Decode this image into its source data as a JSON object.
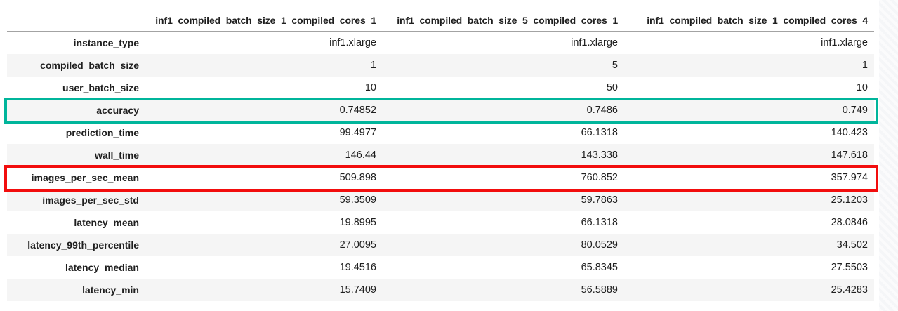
{
  "chart_data": {
    "type": "table",
    "title": "",
    "columns": [
      "inf1_compiled_batch_size_1_compiled_cores_1",
      "inf1_compiled_batch_size_5_compiled_cores_1",
      "inf1_compiled_batch_size_1_compiled_cores_4"
    ],
    "rows": [
      {
        "label": "instance_type",
        "values": [
          "inf1.xlarge",
          "inf1.xlarge",
          "inf1.xlarge"
        ]
      },
      {
        "label": "compiled_batch_size",
        "values": [
          "1",
          "5",
          "1"
        ]
      },
      {
        "label": "user_batch_size",
        "values": [
          "10",
          "50",
          "10"
        ]
      },
      {
        "label": "accuracy",
        "values": [
          "0.74852",
          "0.7486",
          "0.749"
        ]
      },
      {
        "label": "prediction_time",
        "values": [
          "99.4977",
          "66.1318",
          "140.423"
        ]
      },
      {
        "label": "wall_time",
        "values": [
          "146.44",
          "143.338",
          "147.618"
        ]
      },
      {
        "label": "images_per_sec_mean",
        "values": [
          "509.898",
          "760.852",
          "357.974"
        ]
      },
      {
        "label": "images_per_sec_std",
        "values": [
          "59.3509",
          "59.7863",
          "25.1203"
        ]
      },
      {
        "label": "latency_mean",
        "values": [
          "19.8995",
          "66.1318",
          "28.0846"
        ]
      },
      {
        "label": "latency_99th_percentile",
        "values": [
          "27.0095",
          "80.0529",
          "34.502"
        ]
      },
      {
        "label": "latency_median",
        "values": [
          "19.4516",
          "65.8345",
          "27.5503"
        ]
      },
      {
        "label": "latency_min",
        "values": [
          "15.7409",
          "56.5889",
          "25.4283"
        ]
      }
    ],
    "highlighted_rows": [
      {
        "label": "accuracy",
        "box_color": "#00b59b"
      },
      {
        "label": "images_per_sec_mean",
        "box_color": "#f20d0d"
      }
    ],
    "layout": {
      "striped_rows": true,
      "stripe_color": "#f5f5f5",
      "header_rule_color": "#a3a3a3",
      "text_color": "#1f1f1f"
    }
  }
}
